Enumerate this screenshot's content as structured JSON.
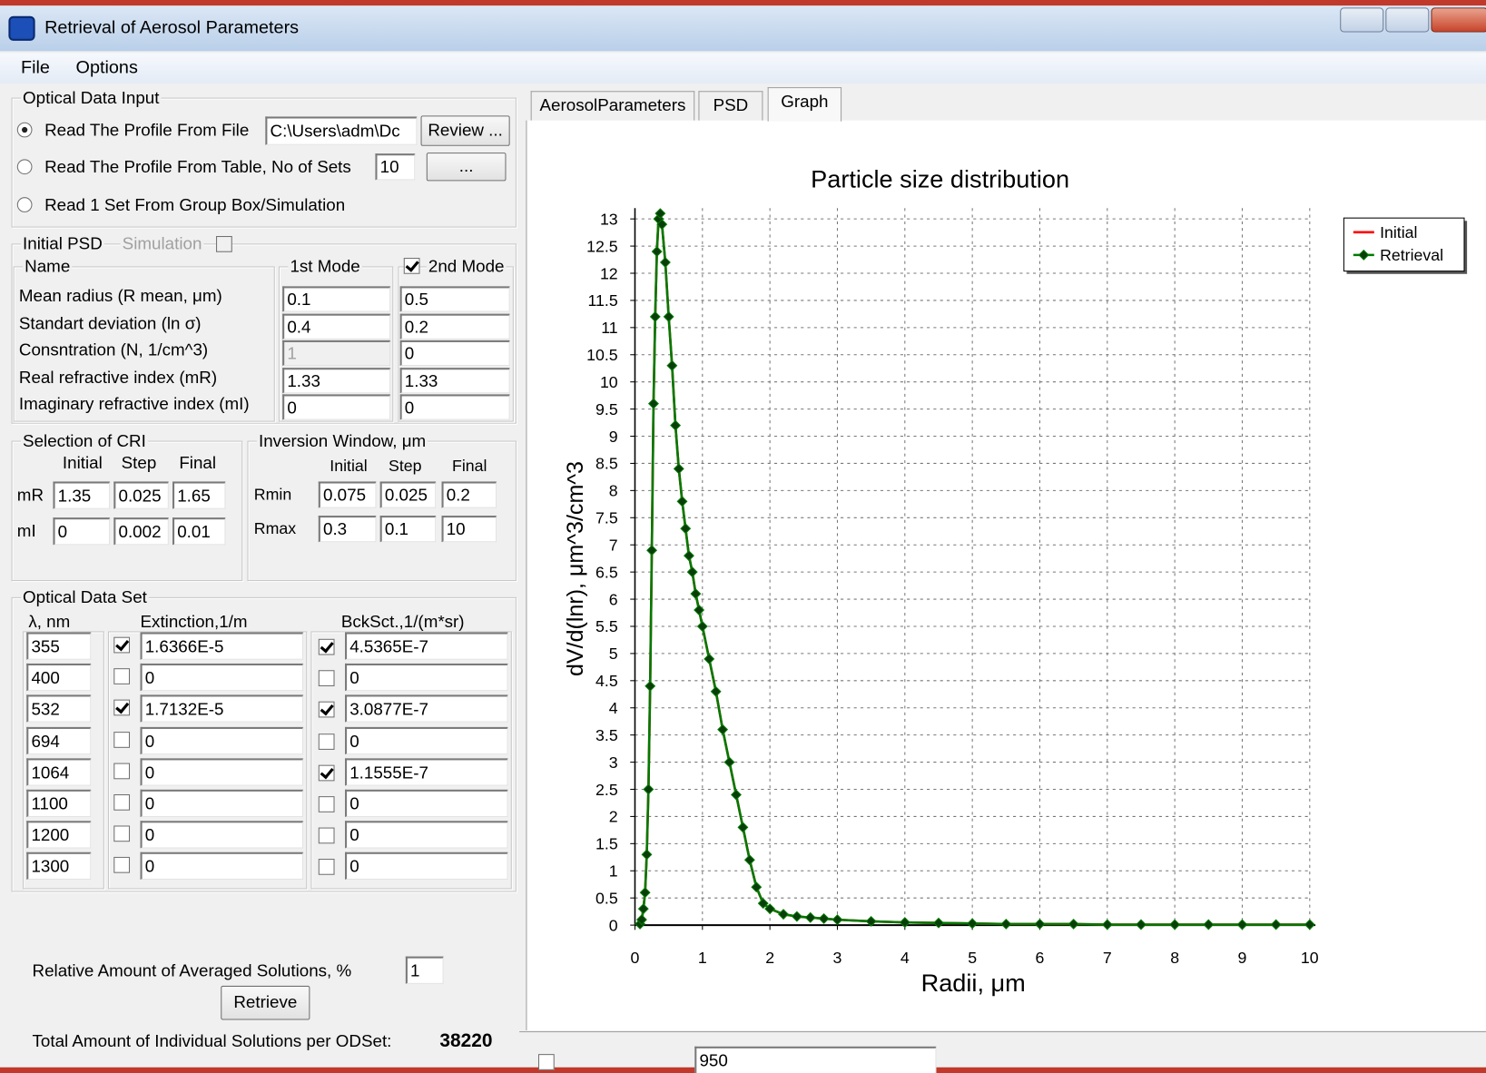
{
  "window": {
    "title": "Retrieval of Aerosol Parameters"
  },
  "menu": [
    "File",
    "Options"
  ],
  "optical_input": {
    "title": "Optical Data Input",
    "options": [
      "Read The Profile From File",
      "Read The Profile From Table, No of Sets",
      "Read 1 Set From Group Box/Simulation"
    ],
    "selected": 0,
    "file_path": "C:\\Users\\adm\\Dc",
    "review_button": "Review ...",
    "sets": "10",
    "browse_button": "..."
  },
  "initial_psd": {
    "title": "Initial PSD",
    "simulation": "Simulation",
    "simulation_checked": false,
    "name_header": "Name",
    "mode1_header": "1st Mode",
    "mode2_header": "2nd Mode",
    "mode2_checked": true,
    "rows": [
      {
        "label": "Mean radius (R mean, μm)",
        "mode1": "0.1",
        "mode2": "0.5"
      },
      {
        "label": "Standart deviation (ln σ)",
        "mode1": "0.4",
        "mode2": "0.2"
      },
      {
        "label": "Consntration (N, 1/cm^3)",
        "mode1": "1",
        "mode2": "0"
      },
      {
        "label": "Real refractive index (mR)",
        "mode1": "1.33",
        "mode2": "1.33"
      },
      {
        "label": "Imaginary refractive index (mI)",
        "mode1": "0",
        "mode2": "0"
      }
    ]
  },
  "cri": {
    "title": "Selection of CRI",
    "headers": [
      "Initial",
      "Step",
      "Final"
    ],
    "rows": [
      {
        "label": "mR",
        "values": [
          "1.35",
          "0.025",
          "1.65"
        ]
      },
      {
        "label": "mI",
        "values": [
          "0",
          "0.002",
          "0.01"
        ]
      }
    ]
  },
  "inversion": {
    "title": "Inversion Window, μm",
    "headers": [
      "Initial",
      "Step",
      "Final"
    ],
    "rows": [
      {
        "label": "Rmin",
        "values": [
          "0.075",
          "0.025",
          "0.2"
        ]
      },
      {
        "label": "Rmax",
        "values": [
          "0.3",
          "0.1",
          "10"
        ]
      }
    ]
  },
  "optical_set": {
    "title": "Optical Data Set",
    "headers": [
      "λ, nm",
      "Extinction,1/m",
      "BckSct.,1/(m*sr)"
    ],
    "rows": [
      {
        "wavelength": "355",
        "ext_checked": true,
        "extinction": "1.6366E-5",
        "bck_checked": true,
        "backscatter": "4.5365E-7"
      },
      {
        "wavelength": "400",
        "ext_checked": false,
        "extinction": "0",
        "bck_checked": false,
        "backscatter": "0"
      },
      {
        "wavelength": "532",
        "ext_checked": true,
        "extinction": "1.7132E-5",
        "bck_checked": true,
        "backscatter": "3.0877E-7"
      },
      {
        "wavelength": "694",
        "ext_checked": false,
        "extinction": "0",
        "bck_checked": false,
        "backscatter": "0"
      },
      {
        "wavelength": "1064",
        "ext_checked": false,
        "extinction": "0",
        "bck_checked": true,
        "backscatter": "1.1555E-7"
      },
      {
        "wavelength": "1100",
        "ext_checked": false,
        "extinction": "0",
        "bck_checked": false,
        "backscatter": "0"
      },
      {
        "wavelength": "1200",
        "ext_checked": false,
        "extinction": "0",
        "bck_checked": false,
        "backscatter": "0"
      },
      {
        "wavelength": "1300",
        "ext_checked": false,
        "extinction": "0",
        "bck_checked": false,
        "backscatter": "0"
      }
    ]
  },
  "footer": {
    "averaged_label": "Relative Amount of Averaged Solutions, %",
    "averaged_value": "1",
    "retrieve_button": "Retrieve",
    "total_label": "Total Amount of Individual Solutions per ODSet:",
    "total_value": "38220"
  },
  "tabs": [
    "AerosolParameters",
    "PSD",
    "Graph"
  ],
  "active_tab": 2,
  "bottom": {
    "combo": "950"
  },
  "chart_data": {
    "type": "line",
    "title": "Particle size distribution",
    "x_label": "Radii, μm",
    "y_label": "dV/d(lnr), μm^3/cm^3",
    "x": [
      0.075,
      0.1,
      0.125,
      0.15,
      0.175,
      0.2,
      0.225,
      0.25,
      0.275,
      0.3,
      0.325,
      0.35,
      0.375,
      0.4,
      0.45,
      0.5,
      0.55,
      0.6,
      0.65,
      0.7,
      0.75,
      0.8,
      0.85,
      0.9,
      0.95,
      1.0,
      1.1,
      1.2,
      1.3,
      1.4,
      1.5,
      1.6,
      1.7,
      1.8,
      1.9,
      2.0,
      2.2,
      2.4,
      2.6,
      2.8,
      3.0,
      3.5,
      4,
      4.5,
      5,
      5.5,
      6,
      6.5,
      7,
      7.5,
      8,
      8.5,
      9,
      9.5,
      10
    ],
    "series": [
      {
        "name": "Initial",
        "color": "#ff0000",
        "marker": false,
        "values": [
          0.02,
          0.1,
          0.3,
          0.6,
          1.3,
          2.5,
          4.4,
          6.9,
          9.6,
          11.2,
          12.4,
          13.0,
          13.1,
          12.9,
          12.2,
          11.2,
          10.3,
          9.2,
          8.4,
          7.8,
          7.3,
          6.8,
          6.5,
          6.1,
          5.8,
          5.5,
          4.9,
          4.3,
          3.6,
          3.0,
          2.4,
          1.8,
          1.2,
          0.7,
          0.4,
          0.3,
          0.2,
          0.16,
          0.14,
          0.12,
          0.1,
          0.07,
          0.05,
          0.04,
          0.03,
          0.02,
          0.02,
          0.02,
          0.01,
          0.01,
          0.01,
          0.01,
          0.01,
          0.01,
          0.01
        ]
      },
      {
        "name": "Retrieval",
        "color": "#007a00",
        "marker": true,
        "values": [
          0.02,
          0.1,
          0.3,
          0.6,
          1.3,
          2.5,
          4.4,
          6.9,
          9.6,
          11.2,
          12.4,
          13.0,
          13.1,
          12.9,
          12.2,
          11.2,
          10.3,
          9.2,
          8.4,
          7.8,
          7.3,
          6.8,
          6.5,
          6.1,
          5.8,
          5.5,
          4.9,
          4.3,
          3.6,
          3.0,
          2.4,
          1.8,
          1.2,
          0.7,
          0.4,
          0.3,
          0.2,
          0.16,
          0.14,
          0.12,
          0.1,
          0.07,
          0.05,
          0.04,
          0.03,
          0.02,
          0.02,
          0.02,
          0.01,
          0.01,
          0.01,
          0.01,
          0.01,
          0.01,
          0.01
        ]
      }
    ],
    "xlim": [
      0,
      10
    ],
    "xticks": [
      0,
      1,
      2,
      3,
      4,
      5,
      6,
      7,
      8,
      9,
      10
    ],
    "ylim": [
      0,
      13.2
    ],
    "yticks": [
      0,
      0.5,
      1,
      1.5,
      2,
      2.5,
      3,
      3.5,
      4,
      4.5,
      5,
      5.5,
      6,
      6.5,
      7,
      7.5,
      8,
      8.5,
      9,
      9.5,
      10,
      10.5,
      11,
      11.5,
      12,
      12.5,
      13
    ],
    "grid": true,
    "legend": "upper-right"
  }
}
